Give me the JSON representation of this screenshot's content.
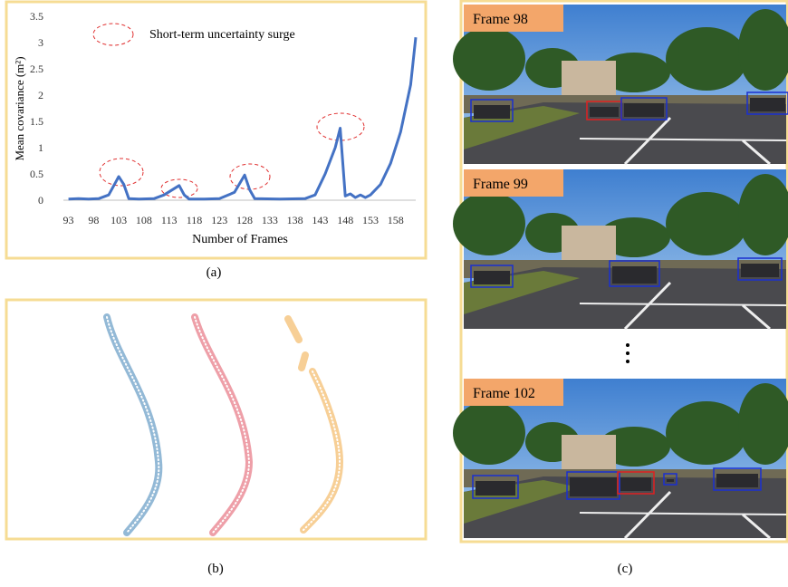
{
  "chart_data": {
    "type": "line",
    "legend_label": "Short-term uncertainty surge",
    "y_label": "Mean covariance (m²)",
    "x_label": "Number of Frames",
    "x": [
      93,
      95,
      97,
      99,
      101,
      103,
      104,
      105,
      107,
      110,
      112,
      115,
      116,
      117,
      120,
      123,
      126,
      128,
      129,
      130,
      135,
      140,
      142,
      144,
      146,
      147,
      148,
      149,
      150,
      151,
      152,
      153,
      155,
      157,
      159,
      161,
      162
    ],
    "values": [
      0.02,
      0.03,
      0.02,
      0.03,
      0.1,
      0.45,
      0.3,
      0.03,
      0.02,
      0.03,
      0.1,
      0.28,
      0.1,
      0.02,
      0.02,
      0.03,
      0.15,
      0.48,
      0.2,
      0.03,
      0.02,
      0.03,
      0.1,
      0.5,
      1.0,
      1.37,
      0.08,
      0.12,
      0.05,
      0.1,
      0.05,
      0.1,
      0.3,
      0.7,
      1.3,
      2.2,
      3.1
    ],
    "color": "#4472c4",
    "xlim": [
      92,
      162
    ],
    "xticks": [
      93,
      98,
      103,
      108,
      113,
      118,
      123,
      128,
      133,
      138,
      143,
      148,
      153,
      158
    ],
    "ylim": [
      0,
      3.5
    ],
    "yticks": [
      0,
      0.5,
      1,
      1.5,
      2,
      2.5,
      3,
      3.5
    ]
  },
  "captions": [
    "(a)",
    "(b)",
    "(c)"
  ],
  "frames": [
    "Frame 98",
    "Frame 99",
    "Frame 102"
  ]
}
